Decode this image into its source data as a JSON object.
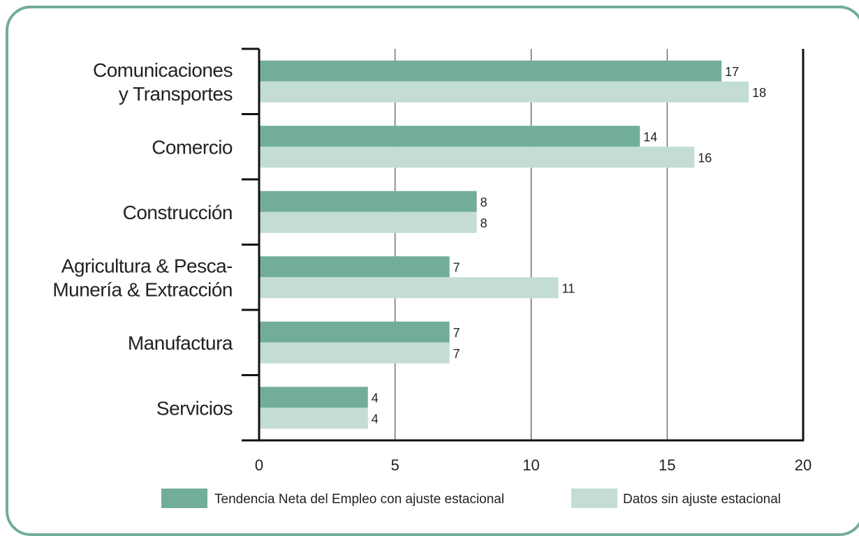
{
  "chart_data": {
    "type": "bar",
    "orientation": "horizontal",
    "categories": [
      [
        "Comunicaciones",
        "y Transportes"
      ],
      [
        "Comercio"
      ],
      [
        "Construcción"
      ],
      [
        "Agricultura & Pesca-",
        "Munería & Extracción"
      ],
      [
        "Manufactura"
      ],
      [
        "Servicios"
      ]
    ],
    "series": [
      {
        "name": "Tendencia Neta del Empleo con ajuste estacional",
        "values": [
          17,
          14,
          8,
          7,
          7,
          4
        ],
        "color": "#72ad99"
      },
      {
        "name": "Datos sin ajuste estacional",
        "values": [
          18,
          16,
          8,
          11,
          7,
          4
        ],
        "color": "#c3ddd2"
      }
    ],
    "xlim": [
      0,
      20
    ],
    "xticks": [
      "0",
      "5",
      "10",
      "15",
      "20"
    ],
    "grid": true,
    "legend_position": "bottom",
    "title": "",
    "xlabel": "",
    "ylabel": ""
  },
  "colors": {
    "frame": "#72ad99",
    "axis": "#111111",
    "grid": "#333333"
  }
}
